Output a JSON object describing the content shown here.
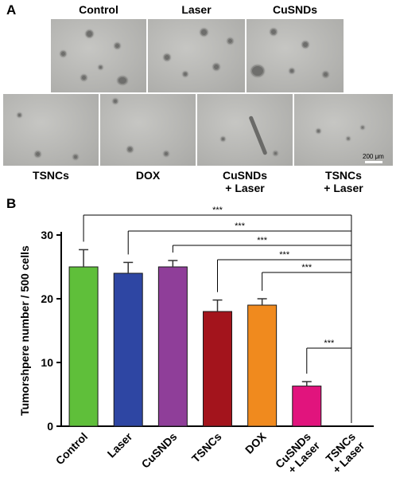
{
  "panel_a": {
    "letter": "A",
    "top_labels": [
      "Control",
      "Laser",
      "CuSNDs"
    ],
    "bottom_labels": [
      [
        "TSNCs"
      ],
      [
        "DOX"
      ],
      [
        "CuSNDs",
        "+ Laser"
      ],
      [
        "TSNCs",
        "+ Laser"
      ]
    ],
    "scale_bar": "200 μm"
  },
  "panel_b": {
    "letter": "B"
  },
  "chart_data": {
    "type": "bar",
    "categories": [
      "Control",
      "Laser",
      "CuSNDs",
      "TSNCs",
      "DOX",
      "CuSNDs\n+ Laser",
      "TSNCs\n+ Laser"
    ],
    "values": [
      25,
      24,
      25,
      18,
      19,
      6.3,
      0
    ],
    "errors": [
      2.7,
      1.7,
      1.0,
      1.8,
      1.0,
      0.7,
      0
    ],
    "colors": [
      "#5fbf3a",
      "#2e46a3",
      "#8f3e99",
      "#a3141c",
      "#f08a1e",
      "#e1147d",
      "#000000"
    ],
    "ylabel": "Tumorshpere number / 500 cells",
    "ylim": [
      0,
      30
    ],
    "yticks": [
      0,
      10,
      20,
      30
    ],
    "significance": [
      "***",
      "***",
      "***",
      "***",
      "***",
      "***"
    ]
  }
}
